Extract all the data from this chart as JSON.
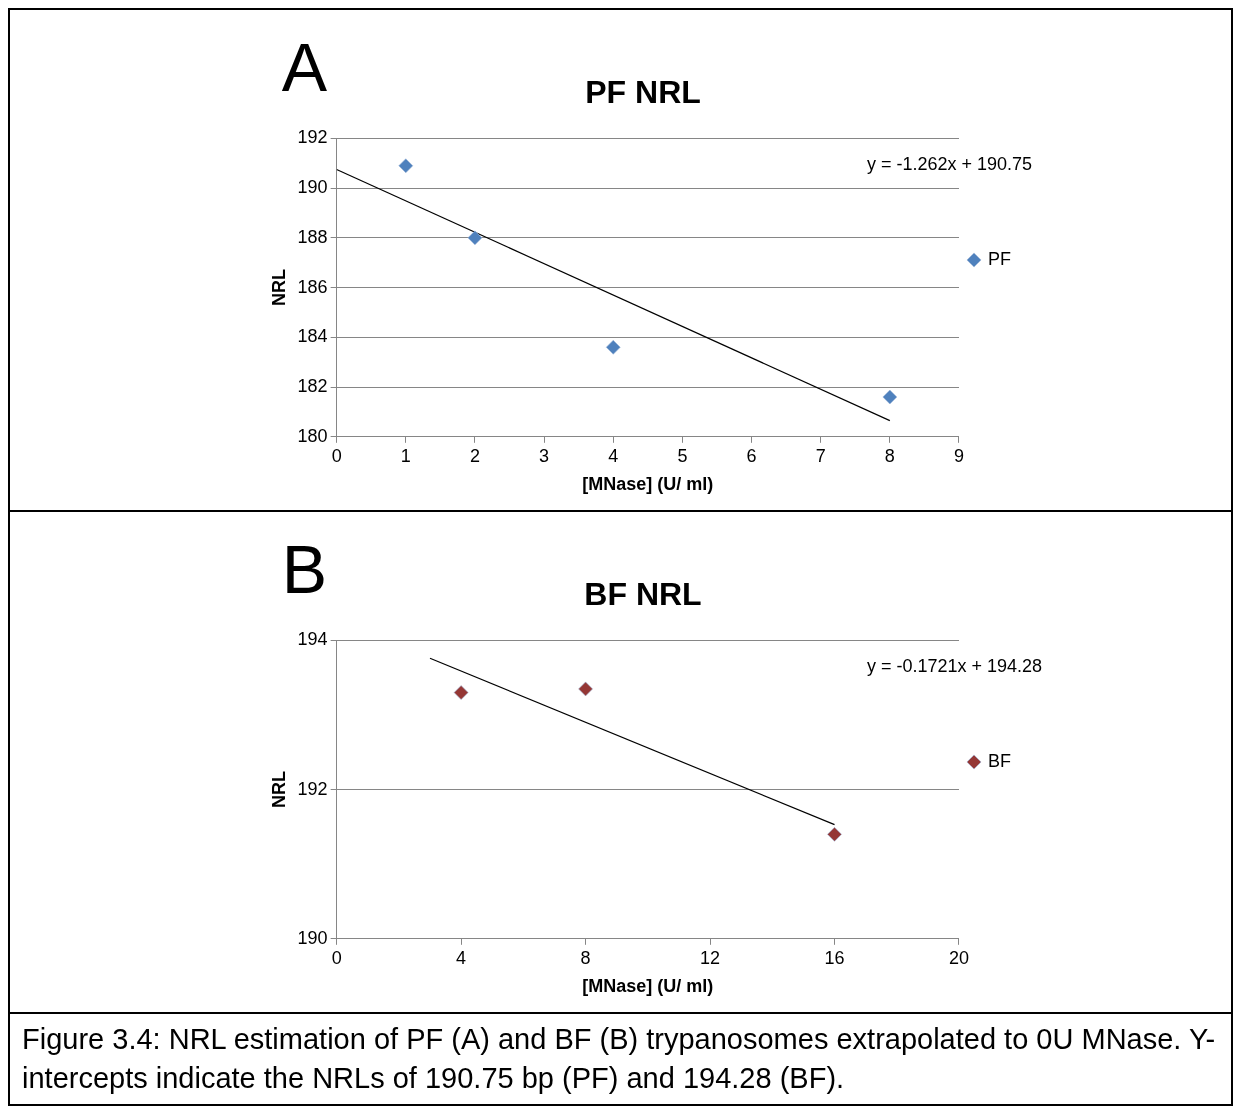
{
  "chart_data": [
    {
      "type": "scatter",
      "title": "PF NRL",
      "xlabel": "[MNase] (U/ ml)",
      "ylabel": "NRL",
      "annotations": [
        "A",
        "y = -1.262x + 190.75"
      ],
      "series": [
        {
          "name": "PF",
          "color": "#4f81bd",
          "marker": "diamond",
          "x": [
            1,
            2,
            4,
            8
          ],
          "values": [
            190.9,
            188.0,
            183.6,
            181.6
          ]
        },
        {
          "type": "line",
          "color": "#000000",
          "marker": "none",
          "x": [
            0,
            8
          ],
          "values": [
            190.75,
            180.65
          ]
        }
      ],
      "xlim": [
        0,
        9
      ],
      "xticks": [
        0,
        1,
        2,
        3,
        4,
        5,
        6,
        7,
        8,
        9
      ],
      "ylim": [
        180,
        192
      ],
      "yticks": [
        180,
        182,
        184,
        186,
        188,
        190,
        192
      ],
      "grid": "y",
      "legend": "right",
      "line_style": "solid"
    },
    {
      "type": "scatter",
      "title": "BF NRL",
      "xlabel": "[MNase] (U/ ml)",
      "ylabel": "NRL",
      "annotations": [
        "B",
        "y = -0.1721x + 194.28",
        "Figure 3.4:  NRL estimation of PF (A) and BF (B) trypanosomes extrapolated to 0U MNase.  Y-intercepts indicate the NRLs of 190.75 bp (PF) and 194.28 (BF)."
      ],
      "series": [
        {
          "name": "BF",
          "color": "#953735",
          "marker": "diamond",
          "x": [
            4,
            8,
            16
          ],
          "values": [
            193.3,
            193.35,
            191.4
          ]
        },
        {
          "type": "line",
          "color": "#000000",
          "marker": "none",
          "x": [
            3,
            16
          ],
          "values": [
            193.76,
            191.53
          ]
        }
      ],
      "xlim": [
        0,
        20
      ],
      "xticks": [
        0,
        4,
        8,
        12,
        16,
        20
      ],
      "ylim": [
        190,
        194
      ],
      "yticks": [
        190,
        192,
        194
      ],
      "grid": "y",
      "legend": "right",
      "line_style": "solid"
    }
  ]
}
